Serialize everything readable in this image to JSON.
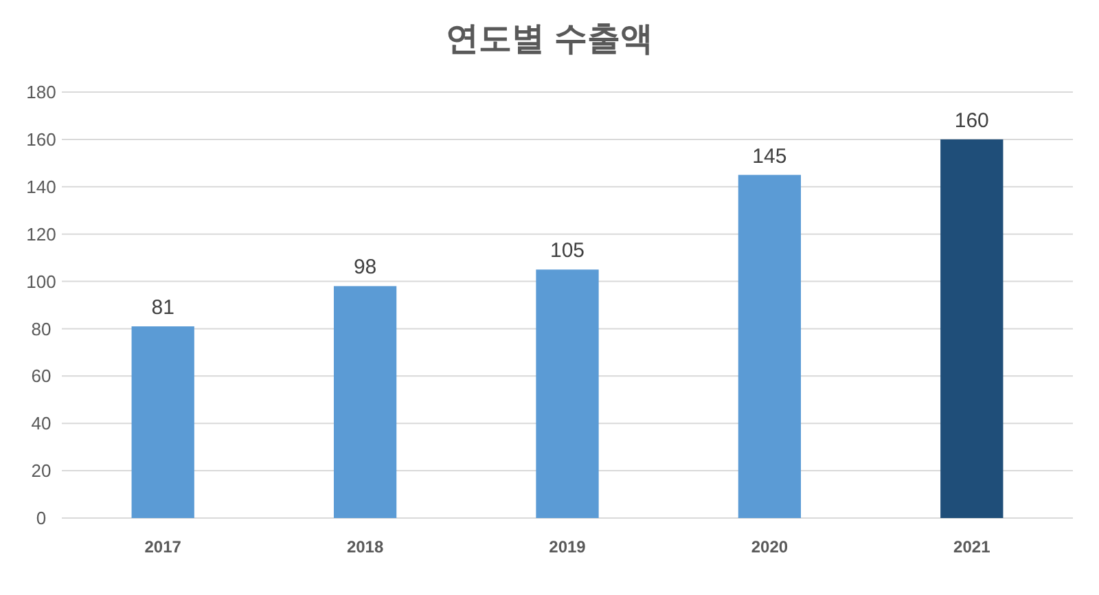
{
  "chart_data": {
    "type": "bar",
    "title": "연도별 수출액",
    "categories": [
      "2017",
      "2018",
      "2019",
      "2020",
      "2021"
    ],
    "values": [
      81,
      98,
      105,
      145,
      160
    ],
    "colors": [
      "#5b9bd5",
      "#5b9bd5",
      "#5b9bd5",
      "#5b9bd5",
      "#1f4e79"
    ],
    "ylim": [
      0,
      180
    ],
    "yticks": [
      0,
      20,
      40,
      60,
      80,
      100,
      120,
      140,
      160,
      180
    ],
    "grid": "y",
    "data_labels": true
  }
}
